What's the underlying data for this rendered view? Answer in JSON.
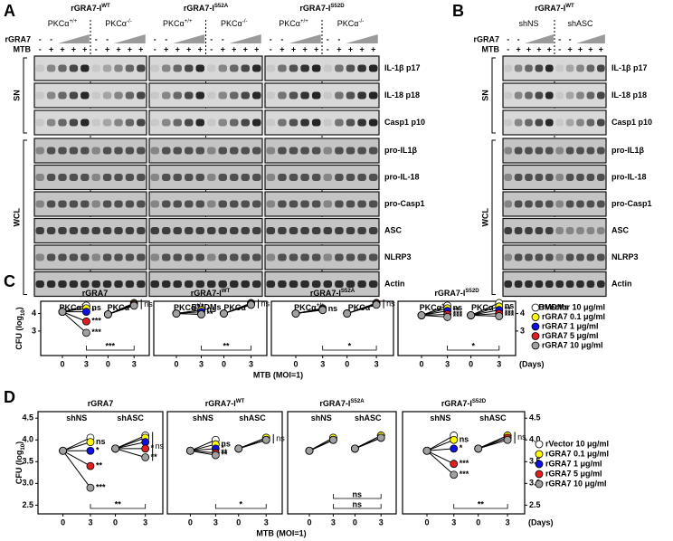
{
  "panel_a": {
    "letter": "A",
    "treatment_labels": [
      "rGRA7",
      "MTB"
    ],
    "rgra7_signs": [
      "-",
      "-"
    ],
    "mtb_signs": [
      "-",
      "+",
      "+",
      "+",
      "+"
    ],
    "fractions": [
      "SN",
      "WCL"
    ],
    "rows": [
      "IL-1β p17",
      "IL-18 p18",
      "Casp1 p10",
      "pro-IL1β",
      "pro-IL-18",
      "pro-Casp1",
      "ASC",
      "NLRP3",
      "Actin"
    ],
    "footer": "BMDMs",
    "groups": [
      {
        "title": "rGRA7-I",
        "title_sup": "WT",
        "subgroups": [
          {
            "text": "PKCα",
            "sup": "+/+"
          },
          {
            "text": "PKCα",
            "sup": "-/-"
          }
        ]
      },
      {
        "title": "rGRA7-I",
        "title_sup": "S52A",
        "subgroups": [
          {
            "text": "PKCα",
            "sup": "+/+"
          },
          {
            "text": "PKCα",
            "sup": "-/-"
          }
        ]
      },
      {
        "title": "rGRA7-I",
        "title_sup": "S52D",
        "subgroups": [
          {
            "text": "PKCα",
            "sup": "+/+"
          },
          {
            "text": "PKCα",
            "sup": "-/-"
          }
        ]
      }
    ]
  },
  "panel_b": {
    "letter": "B",
    "treatment_labels": [
      "rGRA7",
      "MTB"
    ],
    "rgra7_signs": [
      "-",
      "-"
    ],
    "mtb_signs": [
      "-",
      "+",
      "+",
      "+",
      "+"
    ],
    "fractions": [
      "SN",
      "WCL"
    ],
    "rows": [
      "IL-1β p17",
      "IL-18 p18",
      "Casp1 p10",
      "pro-IL1β",
      "pro-IL-18",
      "pro-Casp1",
      "ASC",
      "NLRP3",
      "Actin"
    ],
    "footer": "BMDMs",
    "groups": [
      {
        "title": "rGRA7-I",
        "title_sup": "WT",
        "subgroups": [
          {
            "text": "shNS"
          },
          {
            "text": "shASC"
          }
        ]
      }
    ]
  },
  "panel_c": {
    "letter": "C",
    "ylabel": "CFU (log",
    "ylabel_sub": "10",
    "ylabel_end": ")",
    "xlabel": "MTB (MOI=1)",
    "x_unit": "(Days)",
    "ylim": [
      1.6,
      4.7
    ],
    "yticks": [
      3,
      4
    ],
    "legend": [
      {
        "name": "rVector 10 μg/ml",
        "color": "#ffffff"
      },
      {
        "name": "rGRA7 0.1 μg/ml",
        "color": "#ffff00"
      },
      {
        "name": "rGRA7 1 μg/ml",
        "color": "#1010e0"
      },
      {
        "name": "rGRA7 5 μg/ml",
        "color": "#e02020"
      },
      {
        "name": "rGRA7 10 μg/ml",
        "color": "#a0a0a0"
      }
    ],
    "charts": [
      {
        "type": "line",
        "title": "rGRA7",
        "groups": [
          {
            "text": "PKCα",
            "sup": "+/+"
          },
          {
            "text": "PKCα",
            "sup": "-/-"
          }
        ],
        "x": [
          "0",
          "3",
          "0",
          "3"
        ],
        "values": [
          [
            4.1,
            4.45,
            3.95,
            4.6
          ],
          [
            4.1,
            4.3,
            3.95,
            4.55
          ],
          [
            4.1,
            4.1,
            3.95,
            4.5
          ],
          [
            4.1,
            3.55,
            3.95,
            4.5
          ],
          [
            4.1,
            2.9,
            3.95,
            4.45
          ]
        ],
        "sig_left": [
          null,
          "ns",
          "*",
          "***",
          "***"
        ],
        "sig_right": [
          null,
          null,
          null,
          null,
          null
        ],
        "pair_label": "ns",
        "brackets": [
          "***"
        ]
      },
      {
        "type": "line",
        "title": "rGRA7-I",
        "title_sup": "WT",
        "groups": [
          {
            "text": "PKCα",
            "sup": "+/+"
          },
          {
            "text": "PKCα",
            "sup": "-/-"
          }
        ],
        "x": [
          "0",
          "3",
          "0",
          "3"
        ],
        "values": [
          [
            4.0,
            4.2,
            4.0,
            4.55
          ],
          [
            4.0,
            4.2,
            4.0,
            4.6
          ],
          [
            4.0,
            4.1,
            4.0,
            4.55
          ],
          [
            4.0,
            3.95,
            4.0,
            4.5
          ],
          [
            4.0,
            3.95,
            4.0,
            4.5
          ]
        ],
        "sig_left": [
          null,
          "ns",
          null,
          "**",
          null
        ],
        "sig_right": [
          null,
          null,
          null,
          null,
          null
        ],
        "pair_label": "ns",
        "brackets": [
          "**"
        ]
      },
      {
        "type": "line",
        "title": "rGRA7-I",
        "title_sup": "S52A",
        "groups": [
          {
            "text": "PKCα",
            "sup": "+/+"
          },
          {
            "text": "PKCα",
            "sup": "-/-"
          }
        ],
        "x": [
          "0",
          "3",
          "0",
          "3"
        ],
        "values": [
          [
            4.0,
            4.3,
            4.0,
            4.6
          ],
          [
            4.0,
            4.25,
            4.0,
            4.6
          ],
          [
            4.0,
            4.25,
            4.0,
            4.55
          ],
          [
            4.0,
            4.2,
            4.0,
            4.55
          ],
          [
            4.0,
            4.2,
            4.0,
            4.5
          ]
        ],
        "sig_left": [
          null,
          "ns",
          null,
          null,
          null
        ],
        "sig_right": [
          null,
          null,
          null,
          null,
          null
        ],
        "pair_label": "ns",
        "brackets": [
          "*"
        ]
      },
      {
        "type": "line",
        "title": "rGRA7-I",
        "title_sup": "S52D",
        "groups": [
          {
            "text": "PKCα",
            "sup": "+/+"
          },
          {
            "text": "PKCα",
            "sup": "-/-"
          }
        ],
        "x": [
          "0",
          "3",
          "0",
          "3"
        ],
        "values": [
          [
            3.9,
            4.45,
            3.9,
            4.6
          ],
          [
            3.9,
            4.3,
            3.9,
            4.4
          ],
          [
            3.9,
            4.15,
            3.9,
            4.2
          ],
          [
            3.9,
            3.95,
            3.9,
            4.0
          ],
          [
            3.9,
            3.8,
            3.9,
            3.85
          ]
        ],
        "sig_left": [
          null,
          "ns",
          "**",
          "***",
          "***"
        ],
        "sig_right": [
          null,
          "ns",
          "**",
          "***",
          "***"
        ],
        "brackets": [
          "*"
        ]
      }
    ]
  },
  "panel_d": {
    "letter": "D",
    "ylabel": "CFU (log",
    "ylabel_sub": "10",
    "ylabel_end": ")",
    "xlabel": "MTB (MOI=1)",
    "x_unit": "(Days)",
    "ylim": [
      2.3,
      4.65
    ],
    "yticks": [
      2.5,
      {
        "value": 3,
        "label": "3.0"
      },
      3.5,
      {
        "value": 4,
        "label": "4.0"
      },
      4.5
    ],
    "legend": [
      {
        "name": "rVector 10 μg/ml",
        "color": "#ffffff"
      },
      {
        "name": "rGRA7 0.1 μg/ml",
        "color": "#ffff00"
      },
      {
        "name": "rGRA7 1 μg/ml",
        "color": "#1010e0"
      },
      {
        "name": "rGRA7 5 μg/ml",
        "color": "#e02020"
      },
      {
        "name": "rGRA7 10 μg/ml",
        "color": "#a0a0a0"
      }
    ],
    "charts": [
      {
        "type": "line",
        "title": "rGRA7",
        "groups": [
          {
            "text": "shNS"
          },
          {
            "text": "shASC"
          }
        ],
        "x": [
          "0",
          "3",
          "0",
          "3"
        ],
        "values": [
          [
            3.75,
            4.05,
            3.8,
            4.1
          ],
          [
            3.75,
            3.95,
            3.8,
            4.05
          ],
          [
            3.75,
            3.75,
            3.8,
            3.95
          ],
          [
            3.75,
            3.4,
            3.8,
            3.8
          ],
          [
            3.75,
            2.9,
            3.8,
            3.6
          ]
        ],
        "sig_left": [
          null,
          "ns",
          "*",
          "**",
          "***"
        ],
        "sig_right": [
          null,
          null,
          null,
          "*",
          "**"
        ],
        "pair_label": "ns",
        "brackets": [
          "**"
        ]
      },
      {
        "type": "line",
        "title": "rGRA7-I",
        "title_sup": "WT",
        "groups": [
          {
            "text": "shNS"
          },
          {
            "text": "shASC"
          }
        ],
        "x": [
          "0",
          "3",
          "0",
          "3"
        ],
        "values": [
          [
            3.75,
            4.0,
            3.8,
            4.05
          ],
          [
            3.75,
            3.9,
            3.8,
            4.05
          ],
          [
            3.75,
            3.8,
            3.8,
            4.0
          ],
          [
            3.75,
            3.7,
            3.8,
            4.0
          ],
          [
            3.75,
            3.65,
            3.8,
            4.0
          ]
        ],
        "sig_left": [
          null,
          "ns",
          "*",
          "**",
          "**"
        ],
        "sig_right": [
          null,
          null,
          null,
          null,
          null
        ],
        "pair_label": "ns",
        "brackets": [
          "*"
        ]
      },
      {
        "type": "line",
        "title": "rGRA7-I",
        "title_sup": "S52A",
        "groups": [
          {
            "text": "shNS"
          },
          {
            "text": "shASC"
          }
        ],
        "x": [
          "0",
          "3",
          "0",
          "3"
        ],
        "values": [
          [
            3.75,
            4.05,
            3.8,
            4.1
          ],
          [
            3.75,
            4.05,
            3.8,
            4.1
          ],
          [
            3.75,
            4.0,
            3.8,
            4.05
          ],
          [
            3.75,
            4.0,
            3.8,
            4.05
          ],
          [
            3.75,
            4.0,
            3.8,
            4.05
          ]
        ],
        "sig_left": [
          null,
          null,
          null,
          null,
          null
        ],
        "sig_right": [
          null,
          null,
          null,
          null,
          null
        ],
        "brackets": [
          "ns",
          "ns"
        ]
      },
      {
        "type": "line",
        "title": "rGRA7-I",
        "title_sup": "S52D",
        "groups": [
          {
            "text": "shNS"
          },
          {
            "text": "shASC"
          }
        ],
        "x": [
          "0",
          "3",
          "0",
          "3"
        ],
        "values": [
          [
            3.75,
            4.1,
            3.8,
            4.1
          ],
          [
            3.75,
            4.0,
            3.8,
            4.1
          ],
          [
            3.75,
            3.8,
            3.8,
            4.05
          ],
          [
            3.75,
            3.45,
            3.8,
            4.05
          ],
          [
            3.75,
            3.2,
            3.8,
            4.0
          ]
        ],
        "sig_left": [
          null,
          "ns",
          "*",
          "***",
          "***"
        ],
        "sig_right": [
          null,
          null,
          null,
          null,
          null
        ],
        "pair_label": "ns",
        "brackets": [
          "**"
        ]
      }
    ]
  }
}
